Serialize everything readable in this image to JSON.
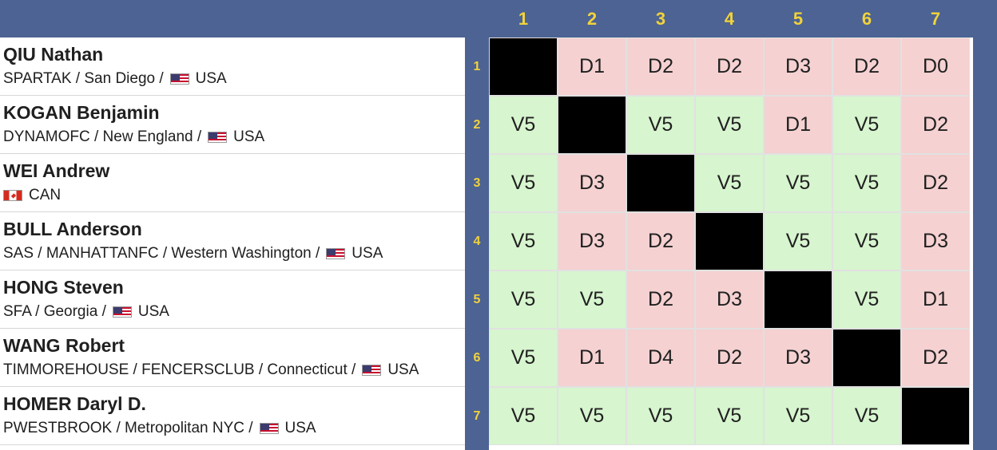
{
  "columns": [
    "1",
    "2",
    "3",
    "4",
    "5",
    "6",
    "7"
  ],
  "rows": [
    "1",
    "2",
    "3",
    "4",
    "5",
    "6",
    "7"
  ],
  "fencers": [
    {
      "name": "QIU Nathan",
      "club": "SPARTAK / San Diego /",
      "country": "USA",
      "flag": "usa-flag-icon"
    },
    {
      "name": "KOGAN Benjamin",
      "club": "DYNAMOFC / New England /",
      "country": "USA",
      "flag": "usa-flag-icon"
    },
    {
      "name": "WEI Andrew",
      "club": "",
      "country": "CAN",
      "flag": "canada-flag-icon"
    },
    {
      "name": "BULL Anderson",
      "club": "SAS / MANHATTANFC / Western Washington /",
      "country": "USA",
      "flag": "usa-flag-icon"
    },
    {
      "name": "HONG Steven",
      "club": "SFA / Georgia /",
      "country": "USA",
      "flag": "usa-flag-icon"
    },
    {
      "name": "WANG Robert",
      "club": "TIMMOREHOUSE / FENCERSCLUB / Connecticut /",
      "country": "USA",
      "flag": "usa-flag-icon"
    },
    {
      "name": "HOMER Daryl D.",
      "club": "PWESTBROOK / Metropolitan NYC /",
      "country": "USA",
      "flag": "usa-flag-icon"
    }
  ],
  "results": [
    [
      "",
      "D1",
      "D2",
      "D2",
      "D3",
      "D2",
      "D0"
    ],
    [
      "V5",
      "",
      "V5",
      "V5",
      "D1",
      "V5",
      "D2"
    ],
    [
      "V5",
      "D3",
      "",
      "V5",
      "V5",
      "V5",
      "D2"
    ],
    [
      "V5",
      "D3",
      "D2",
      "",
      "V5",
      "V5",
      "D3"
    ],
    [
      "V5",
      "V5",
      "D2",
      "D3",
      "",
      "V5",
      "D1"
    ],
    [
      "V5",
      "D1",
      "D4",
      "D2",
      "D3",
      "",
      "D2"
    ],
    [
      "V5",
      "V5",
      "V5",
      "V5",
      "V5",
      "V5",
      ""
    ]
  ],
  "colors": {
    "header": "#4c6393",
    "number": "#f2d23b",
    "victory": "#d7f5cf",
    "defeat": "#f5d1d1",
    "self": "#000000"
  }
}
